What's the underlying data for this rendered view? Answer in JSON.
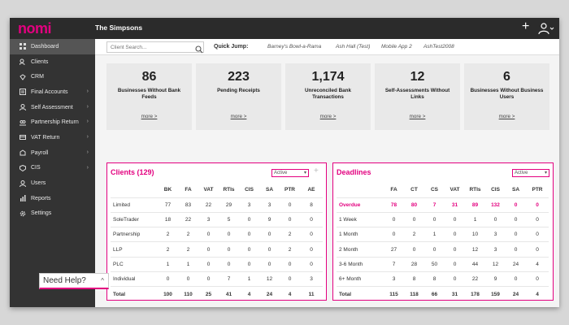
{
  "app": {
    "logo": "nomi",
    "client_name": "The Simpsons"
  },
  "sidebar": {
    "items": [
      {
        "label": "Dashboard",
        "icon": "dashboard-icon"
      },
      {
        "label": "Clients",
        "icon": "clients-icon"
      },
      {
        "label": "CRM",
        "icon": "crm-icon"
      },
      {
        "label": "Final Accounts",
        "icon": "accounts-icon"
      },
      {
        "label": "Self Assessment",
        "icon": "person-icon"
      },
      {
        "label": "Partnership Return",
        "icon": "partnership-icon"
      },
      {
        "label": "VAT Return",
        "icon": "vat-icon"
      },
      {
        "label": "Payroll",
        "icon": "payroll-icon"
      },
      {
        "label": "CIS",
        "icon": "cis-icon"
      },
      {
        "label": "Users",
        "icon": "users-icon"
      },
      {
        "label": "Reports",
        "icon": "reports-icon"
      },
      {
        "label": "Settings",
        "icon": "gear-icon"
      }
    ]
  },
  "search": {
    "placeholder": "Client Search..."
  },
  "quick_jump": {
    "label": "Quick Jump:",
    "links": [
      "Barney's Bowl-a-Rama",
      "Ash Hall (Test)",
      "Mobile App 2",
      "AshTest2008"
    ]
  },
  "stats": [
    {
      "value": "86",
      "label": "Businesses Without Bank Feeds",
      "more": "more >"
    },
    {
      "value": "223",
      "label": "Pending Receipts",
      "more": "more >"
    },
    {
      "value": "1,174",
      "label": "Unreconciled Bank Transactions",
      "more": "more >"
    },
    {
      "value": "12",
      "label": "Self-Assessments Without Links",
      "more": "more >"
    },
    {
      "value": "6",
      "label": "Businesses Without Business Users",
      "more": "more >"
    }
  ],
  "clients": {
    "title": "Clients (129)",
    "filter": "Active",
    "columns": [
      "",
      "BK",
      "FA",
      "VAT",
      "RTIs",
      "CIS",
      "SA",
      "PTR",
      "AE"
    ],
    "rows": [
      [
        "Limited",
        "77",
        "83",
        "22",
        "29",
        "3",
        "3",
        "0",
        "8"
      ],
      [
        "SoleTrader",
        "18",
        "22",
        "3",
        "5",
        "0",
        "9",
        "0",
        "0"
      ],
      [
        "Partnership",
        "2",
        "2",
        "0",
        "0",
        "0",
        "0",
        "2",
        "0"
      ],
      [
        "LLP",
        "2",
        "2",
        "0",
        "0",
        "0",
        "0",
        "2",
        "0"
      ],
      [
        "PLC",
        "1",
        "1",
        "0",
        "0",
        "0",
        "0",
        "0",
        "0"
      ],
      [
        "Individual",
        "0",
        "0",
        "0",
        "7",
        "1",
        "12",
        "0",
        "3"
      ],
      [
        "Total",
        "100",
        "110",
        "25",
        "41",
        "4",
        "24",
        "4",
        "11"
      ]
    ]
  },
  "deadlines": {
    "title": "Deadlines",
    "filter": "Active",
    "columns": [
      "",
      "FA",
      "CT",
      "CS",
      "VAT",
      "RTIs",
      "CIS",
      "SA",
      "PTR"
    ],
    "rows": [
      [
        "Overdue",
        "78",
        "80",
        "7",
        "31",
        "89",
        "132",
        "0",
        "0"
      ],
      [
        "1 Week",
        "0",
        "0",
        "0",
        "0",
        "1",
        "0",
        "0",
        "0"
      ],
      [
        "1 Month",
        "0",
        "2",
        "1",
        "0",
        "10",
        "3",
        "0",
        "0"
      ],
      [
        "2 Month",
        "27",
        "0",
        "0",
        "0",
        "12",
        "3",
        "0",
        "0"
      ],
      [
        "3-6 Month",
        "7",
        "28",
        "50",
        "0",
        "44",
        "12",
        "24",
        "4"
      ],
      [
        "6+ Month",
        "3",
        "8",
        "8",
        "0",
        "22",
        "9",
        "0",
        "0"
      ],
      [
        "Total",
        "115",
        "118",
        "66",
        "31",
        "178",
        "159",
        "24",
        "4"
      ]
    ]
  },
  "help": {
    "label": "Need Help?"
  },
  "colors": {
    "accent": "#e3007f",
    "sidebar": "#333333",
    "topbar": "#2b2b2b"
  }
}
